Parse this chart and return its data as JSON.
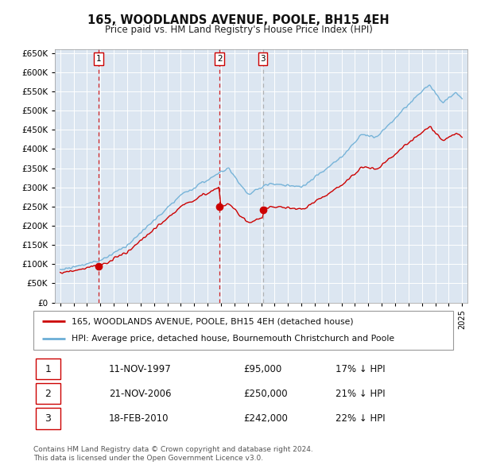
{
  "title": "165, WOODLANDS AVENUE, POOLE, BH15 4EH",
  "subtitle": "Price paid vs. HM Land Registry's House Price Index (HPI)",
  "legend_line1": "165, WOODLANDS AVENUE, POOLE, BH15 4EH (detached house)",
  "legend_line2": "HPI: Average price, detached house, Bournemouth Christchurch and Poole",
  "table_rows": [
    {
      "num": "1",
      "date": "11-NOV-1997",
      "price": "£95,000",
      "hpi": "17% ↓ HPI"
    },
    {
      "num": "2",
      "date": "21-NOV-2006",
      "price": "£250,000",
      "hpi": "21% ↓ HPI"
    },
    {
      "num": "3",
      "date": "18-FEB-2010",
      "price": "£242,000",
      "hpi": "22% ↓ HPI"
    }
  ],
  "footer1": "Contains HM Land Registry data © Crown copyright and database right 2024.",
  "footer2": "This data is licensed under the Open Government Licence v3.0.",
  "sale_years": [
    1997.87,
    2006.89,
    2010.12
  ],
  "sale_prices": [
    95000,
    250000,
    242000
  ],
  "hpi_color": "#6baed6",
  "price_color": "#cc0000",
  "vline_colors": [
    "#cc0000",
    "#cc0000",
    "#aaaaaa"
  ],
  "background_color": "#dce6f1",
  "grid_color": "#ffffff",
  "ylim": [
    0,
    660000
  ],
  "yticks": [
    0,
    50000,
    100000,
    150000,
    200000,
    250000,
    300000,
    350000,
    400000,
    450000,
    500000,
    550000,
    600000,
    650000
  ]
}
